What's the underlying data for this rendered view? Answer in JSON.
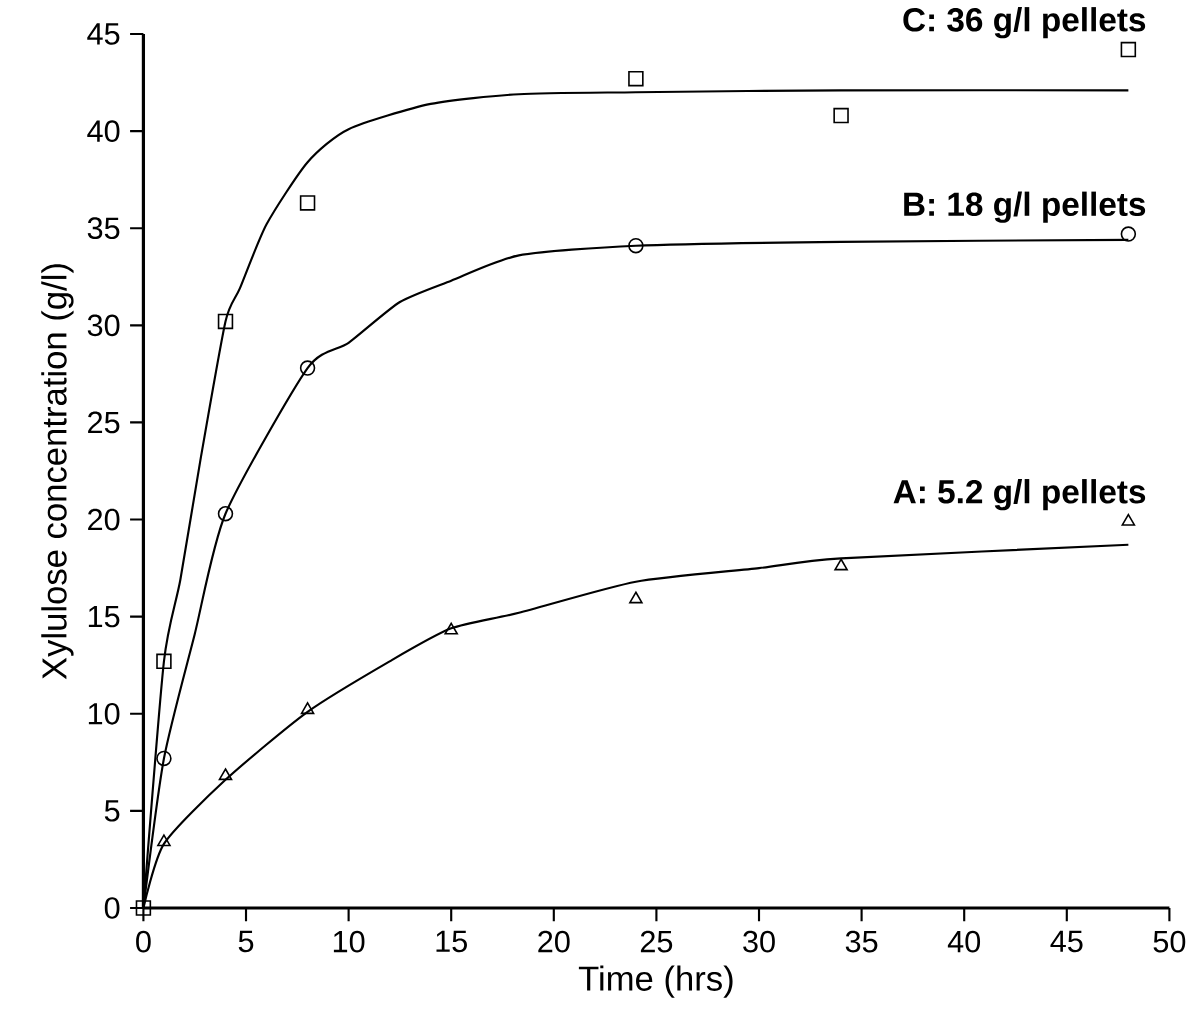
{
  "chart_data": {
    "type": "scatter",
    "xlabel": "Time (hrs)",
    "ylabel": "Xylulose concentration (g/l)",
    "xlim": [
      0,
      50
    ],
    "ylim": [
      0,
      45
    ],
    "xticks": [
      0,
      5,
      10,
      15,
      20,
      25,
      30,
      35,
      40,
      45,
      50
    ],
    "yticks": [
      0,
      5,
      10,
      15,
      20,
      25,
      30,
      35,
      40,
      45
    ],
    "grid": false,
    "legend": false,
    "series": [
      {
        "name": "C: 36 g/l pellets",
        "marker": "square",
        "color": "#000000",
        "x": [
          0,
          1,
          4,
          8,
          24,
          34,
          48
        ],
        "values": [
          0,
          12.7,
          30.2,
          36.3,
          42.7,
          40.8,
          44.2
        ]
      },
      {
        "name": "B: 18 g/l pellets",
        "marker": "circle",
        "color": "#000000",
        "x": [
          1,
          4,
          8,
          24,
          48
        ],
        "values": [
          7.7,
          20.3,
          27.8,
          34.1,
          34.7
        ]
      },
      {
        "name": "A: 5.2 g/l pellets",
        "marker": "triangle",
        "color": "#000000",
        "x": [
          1,
          4,
          8,
          15,
          24,
          34,
          48
        ],
        "values": [
          3.4,
          6.8,
          10.2,
          14.3,
          15.9,
          17.6,
          19.9
        ]
      },
      {
        "type": "line",
        "marker": "none",
        "line_style": "solid",
        "color": "#000000",
        "x": [
          0,
          1,
          1.8,
          2.8,
          4,
          4.7,
          6,
          8,
          10,
          14,
          18.3,
          24,
          34,
          48
        ],
        "values": [
          0,
          12.7,
          16.9,
          23.2,
          30.2,
          31.9,
          35.2,
          38.4,
          40.1,
          41.4,
          41.9,
          42.0,
          42.1,
          42.1
        ]
      },
      {
        "type": "line",
        "marker": "none",
        "line_style": "solid",
        "color": "#000000",
        "x": [
          0,
          1,
          2.5,
          4,
          8,
          10,
          12.5,
          15,
          18.3,
          24,
          34,
          48
        ],
        "values": [
          0,
          7.7,
          14.1,
          20.3,
          27.8,
          29.1,
          31.2,
          32.3,
          33.6,
          34.1,
          34.3,
          34.4
        ]
      },
      {
        "type": "line",
        "marker": "none",
        "line_style": "solid",
        "color": "#000000",
        "x": [
          0,
          1,
          4,
          8,
          12,
          15,
          18.3,
          24,
          30,
          34,
          48
        ],
        "values": [
          0,
          3.3,
          6.6,
          10.1,
          12.7,
          14.4,
          15.2,
          16.8,
          17.5,
          18.0,
          18.7
        ]
      }
    ]
  }
}
